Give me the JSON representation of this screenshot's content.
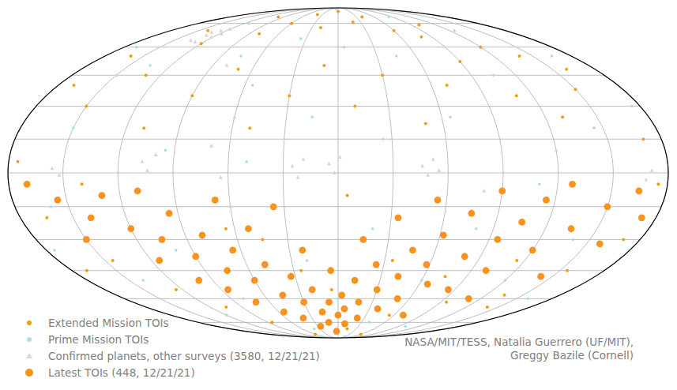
{
  "chart_data": {
    "type": "scatter",
    "xlim": [
      -180,
      180
    ],
    "ylim": [
      -90,
      90
    ],
    "xticks": [
      -180,
      -150,
      -120,
      -90,
      -60,
      -30,
      0,
      30,
      60,
      90,
      120,
      150,
      180
    ],
    "yticks": [
      -90,
      -75,
      -60,
      -45,
      -30,
      -15,
      0,
      15,
      30,
      45,
      60,
      75,
      90
    ],
    "grid": true,
    "tick_labels": false,
    "legend": "lower left",
    "annotations": [
      "NASA/MIT/TESS, Natalia Guerrero (UF/MIT),",
      "Greggy Bazile (Cornell)"
    ],
    "series": [
      {
        "name": "Confirmed planets, other surveys (3580, 12/21/21)",
        "color": "#d6d6d6",
        "marker": "triangle",
        "x": [
          -135,
          -130,
          -126,
          -122,
          -118,
          -128,
          -132,
          -120,
          -156,
          -152,
          -107,
          -104,
          -100,
          -25,
          -22,
          -19,
          -5,
          -2,
          1,
          46,
          49,
          52,
          55,
          168,
          171,
          -70,
          -64,
          80,
          120,
          -150,
          -60,
          -80
        ],
        "values": [
          64,
          67,
          70,
          66,
          68,
          63,
          69,
          71,
          2,
          -1,
          5,
          1,
          8,
          3,
          -2,
          6,
          4,
          0,
          7,
          3,
          -1,
          6,
          1,
          -3,
          1,
          12,
          -2,
          -8,
          10,
          45,
          25,
          50
        ]
      },
      {
        "name": "Prime Mission TOIs",
        "color": "#a9dcf2",
        "marker": "circle",
        "x": [
          -170,
          -150,
          -135,
          -115,
          -95,
          -75,
          -55,
          -35,
          -15,
          5,
          25,
          45,
          65,
          85,
          105,
          125,
          145,
          165,
          -160,
          -140,
          -120,
          -100,
          -80,
          -60,
          -40,
          -20,
          0,
          20,
          40,
          60,
          80,
          100,
          120,
          140,
          160,
          -175,
          175,
          -10,
          30,
          -50,
          110
        ],
        "values": [
          60,
          20,
          50,
          75,
          10,
          55,
          40,
          65,
          25,
          60,
          15,
          55,
          25,
          80,
          45,
          70,
          20,
          55,
          -15,
          -50,
          -70,
          -35,
          -60,
          -15,
          -80,
          -40,
          -60,
          -25,
          -75,
          -50,
          -25,
          -78,
          -50,
          -30,
          -60,
          -35,
          30,
          88,
          -88,
          5,
          -5
        ]
      },
      {
        "name": "Extended Mission TOIs",
        "color": "#f39c12",
        "marker": "circle",
        "x": [
          -160,
          -140,
          -120,
          -100,
          -80,
          -60,
          -40,
          -20,
          0,
          20,
          40,
          60,
          80,
          100,
          120,
          140,
          160,
          -170,
          -150,
          -130,
          -110,
          -90,
          -70,
          -50,
          -30,
          -10,
          10,
          30,
          50,
          70,
          90,
          110,
          130,
          150,
          170,
          -175,
          175,
          -165,
          -145,
          -125,
          -105,
          -85,
          -65,
          -45,
          -25,
          -5,
          15,
          35,
          55,
          75,
          95,
          115,
          135,
          155,
          170,
          -170,
          -60,
          60,
          5,
          -140,
          140
        ],
        "values": [
          55,
          70,
          62,
          80,
          68,
          75,
          82,
          72,
          85,
          76,
          80,
          70,
          66,
          74,
          60,
          55,
          48,
          40,
          30,
          45,
          20,
          35,
          48,
          20,
          35,
          50,
          30,
          45,
          22,
          40,
          52,
          35,
          25,
          38,
          15,
          5,
          -5,
          -20,
          -40,
          -55,
          -65,
          -75,
          -25,
          -30,
          -45,
          -55,
          -80,
          -40,
          -70,
          -48,
          -62,
          -40,
          -58,
          -45,
          -30,
          -45,
          -85,
          -85,
          -10,
          -5,
          -65
        ]
      },
      {
        "name": "Latest TOIs (448, 12/21/21)",
        "color": "#f7931e",
        "marker": "circle",
        "x": [
          -170,
          -155,
          -150,
          -140,
          -130,
          -120,
          -115,
          -110,
          -105,
          -100,
          -95,
          -90,
          -85,
          -80,
          -75,
          -72,
          -68,
          -65,
          -60,
          -55,
          -52,
          -48,
          -45,
          -40,
          -36,
          -33,
          -30,
          -26,
          -22,
          -20,
          -16,
          -12,
          -8,
          -5,
          -3,
          0,
          3,
          6,
          9,
          12,
          15,
          18,
          22,
          25,
          30,
          34,
          38,
          42,
          46,
          50,
          55,
          58,
          62,
          66,
          70,
          75,
          80,
          85,
          90,
          95,
          100,
          105,
          110,
          115,
          120,
          128,
          135,
          142,
          150,
          158,
          165,
          172
        ],
        "values": [
          -5,
          -12,
          -30,
          -20,
          -10,
          -25,
          -40,
          -8,
          -30,
          -50,
          -18,
          -38,
          -55,
          -28,
          -45,
          -62,
          -12,
          -35,
          -50,
          -68,
          -25,
          -42,
          -58,
          -72,
          -15,
          -48,
          -62,
          -78,
          -35,
          -55,
          -68,
          -75,
          -62,
          -45,
          -82,
          -70,
          -58,
          -66,
          -76,
          -50,
          -30,
          -62,
          -72,
          -42,
          -55,
          -20,
          -66,
          -48,
          -35,
          -60,
          -12,
          -42,
          -28,
          -52,
          -70,
          -18,
          -38,
          -55,
          -8,
          -30,
          -45,
          -22,
          -60,
          -12,
          -35,
          -5,
          -25,
          -48,
          -15,
          -32,
          -8,
          -20
        ]
      }
    ]
  }
}
